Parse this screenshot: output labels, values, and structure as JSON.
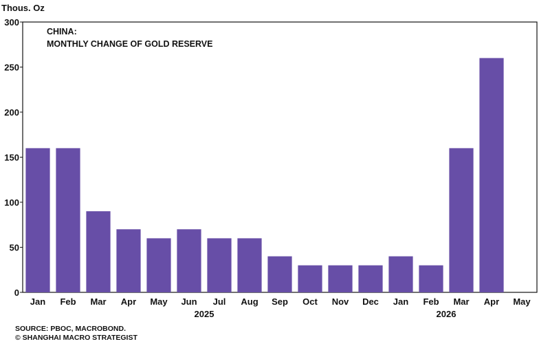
{
  "chart_data": {
    "type": "bar",
    "title_line1": "CHINA:",
    "title_line2": "MONTHLY CHANGE OF GOLD RESERVE",
    "unit_label": "Thous. Oz",
    "categories": [
      "Jan",
      "Feb",
      "Mar",
      "Apr",
      "May",
      "Jun",
      "Jul",
      "Aug",
      "Sep",
      "Oct",
      "Nov",
      "Dec",
      "Jan",
      "Feb",
      "Mar",
      "Apr",
      "May"
    ],
    "values": [
      160,
      160,
      90,
      70,
      60,
      70,
      60,
      60,
      40,
      30,
      30,
      30,
      40,
      30,
      160,
      260,
      null
    ],
    "year_labels": [
      {
        "label": "2025",
        "center_index": 5.5
      },
      {
        "label": "2026",
        "center_index": 13.5
      }
    ],
    "ylim": [
      0,
      300
    ],
    "yticks": [
      0,
      50,
      100,
      150,
      200,
      250,
      300
    ],
    "grid": false,
    "bar_color": "#674ea7",
    "source_line": "SOURCE: PBOC, MACROBOND.",
    "copyright_line": "© SHANGHAI MACRO STRATEGIST"
  }
}
